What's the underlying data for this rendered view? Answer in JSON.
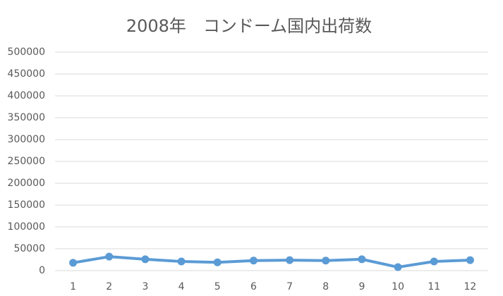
{
  "chart_data": {
    "type": "line",
    "title": "2008年　コンドーム国内出荷数",
    "categories": [
      "1",
      "2",
      "3",
      "4",
      "5",
      "6",
      "7",
      "8",
      "9",
      "10",
      "11",
      "12"
    ],
    "series": [
      {
        "name": "コンドーム国内出荷数",
        "color": "#5b9bd5",
        "values": [
          18000,
          32000,
          26000,
          21000,
          19000,
          23000,
          24000,
          23000,
          26000,
          8000,
          21000,
          24000
        ]
      }
    ],
    "ylim": [
      0,
      500000
    ],
    "yticks": [
      0,
      50000,
      100000,
      150000,
      200000,
      250000,
      300000,
      350000,
      400000,
      450000,
      500000
    ],
    "grid": true
  }
}
